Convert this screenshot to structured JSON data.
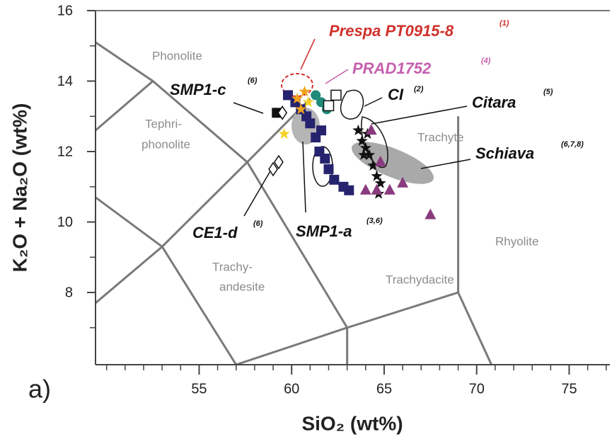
{
  "chart_data": {
    "type": "scatter",
    "panel": "a)",
    "x_label": "SiO₂ (wt%)",
    "y_label": "K₂O + Na₂O (wt%)",
    "xlim": [
      49.4,
      77.2
    ],
    "ylim": [
      5.95,
      16
    ],
    "xticks": [
      55,
      60,
      65,
      70,
      75
    ],
    "yticks": [
      8,
      10,
      12,
      14,
      16
    ],
    "xminor": [
      50,
      51,
      52,
      53,
      54,
      56,
      57,
      58,
      59,
      61,
      62,
      63,
      64,
      66,
      67,
      68,
      69,
      71,
      72,
      73,
      74,
      76,
      77
    ],
    "yminor": [
      7,
      9,
      11,
      13,
      15
    ],
    "boundary_color": "#7a7a7a",
    "boundaries": [
      {
        "x": [
          49.4,
          52.5,
          57.6
        ],
        "y": [
          15.1,
          14,
          11.7
        ]
      },
      {
        "x": [
          49.4,
          52.5
        ],
        "y": [
          12.6,
          14
        ]
      },
      {
        "x": [
          49.4,
          53
        ],
        "y": [
          10.7,
          9.3
        ]
      },
      {
        "x": [
          49.4,
          53,
          57.6,
          61
        ],
        "y": [
          7.7,
          9.3,
          11.7,
          13.5
        ]
      },
      {
        "x": [
          53,
          57
        ],
        "y": [
          9.3,
          5.95
        ]
      },
      {
        "x": [
          57.6,
          63,
          69,
          69
        ],
        "y": [
          11.7,
          7,
          8,
          13
        ]
      },
      {
        "x": [
          57,
          63,
          63
        ],
        "y": [
          5.95,
          7,
          5.95
        ]
      },
      {
        "x": [
          69,
          70.8
        ],
        "y": [
          8,
          5.95
        ]
      }
    ],
    "fields": [
      "Phonolite",
      "Tephri-",
      "phonolite",
      "Trachyte",
      "Rhyolite",
      "Trachy-",
      "andesite",
      "Trachydacite"
    ],
    "annotations": [
      {
        "text": "Prespa PT0915-8",
        "ref": "(1)",
        "color": "#d0302b"
      },
      {
        "text": "PRAD1752",
        "ref": "(4)",
        "color": "#c65fae"
      },
      {
        "text": "SMP1-c",
        "ref": "(6)",
        "color": "#111111"
      },
      {
        "text": "CI",
        "ref": "(2)",
        "color": "#111111"
      },
      {
        "text": "Citara",
        "ref": "(5)",
        "color": "#111111"
      },
      {
        "text": "Schiava",
        "ref": "(6,7,8)",
        "color": "#111111"
      },
      {
        "text": "CE1-d",
        "ref": "(6)",
        "color": "#111111"
      },
      {
        "text": "SMP1-a",
        "ref": "(3,6)",
        "color": "#111111"
      }
    ],
    "series": [
      {
        "marker": "square",
        "color": "#26236e",
        "x": [
          59.8,
          60.2,
          60.5,
          60.8,
          61,
          61.3,
          61.6,
          61.5,
          61.8,
          62,
          62.3,
          62.8,
          63.1
        ],
        "values": [
          13.6,
          13.4,
          13.2,
          13,
          12.8,
          12.4,
          12.6,
          12,
          11.8,
          11.5,
          11.2,
          11,
          10.9
        ]
      },
      {
        "marker": "star",
        "color": "#111111",
        "x": [
          63.6,
          63.8,
          64,
          64.1,
          64.2,
          63.9,
          64.4,
          64.6,
          64.8,
          64.7
        ],
        "values": [
          12.6,
          12.3,
          12.1,
          12.5,
          11.9,
          11.9,
          11.6,
          11.3,
          11.1,
          10.8
        ]
      },
      {
        "marker": "triangle",
        "color": "#8a3a7e",
        "x": [
          64.3,
          64.8,
          64,
          64.6,
          65.3,
          66,
          67.5
        ],
        "values": [
          12.6,
          11.7,
          10.9,
          10.9,
          10.9,
          11.1,
          10.2
        ]
      },
      {
        "marker": "star",
        "color": "#f2a31b",
        "x": [
          60.3,
          60.7,
          60.5
        ],
        "values": [
          13.5,
          13.7,
          13.2
        ]
      },
      {
        "marker": "star",
        "color": "#f5d22a",
        "x": [
          59.6,
          60.9
        ],
        "values": [
          12.5,
          13.4
        ]
      },
      {
        "marker": "circle",
        "color": "#1f8a7a",
        "x": [
          61.3,
          61.6,
          61.9
        ],
        "values": [
          13.6,
          13.4,
          13.2
        ]
      },
      {
        "marker": "square",
        "color": "#111111",
        "x": [
          59.2
        ],
        "values": [
          13.1
        ]
      },
      {
        "marker": "diamond",
        "color": "#111111",
        "x": [
          59.5,
          59.3,
          59.0
        ],
        "values": [
          13.1,
          11.7,
          11.5
        ]
      },
      {
        "marker": "opensquare",
        "color": "#111111",
        "x": [
          62.4,
          62
        ],
        "values": [
          13.6,
          13.3
        ]
      }
    ]
  }
}
